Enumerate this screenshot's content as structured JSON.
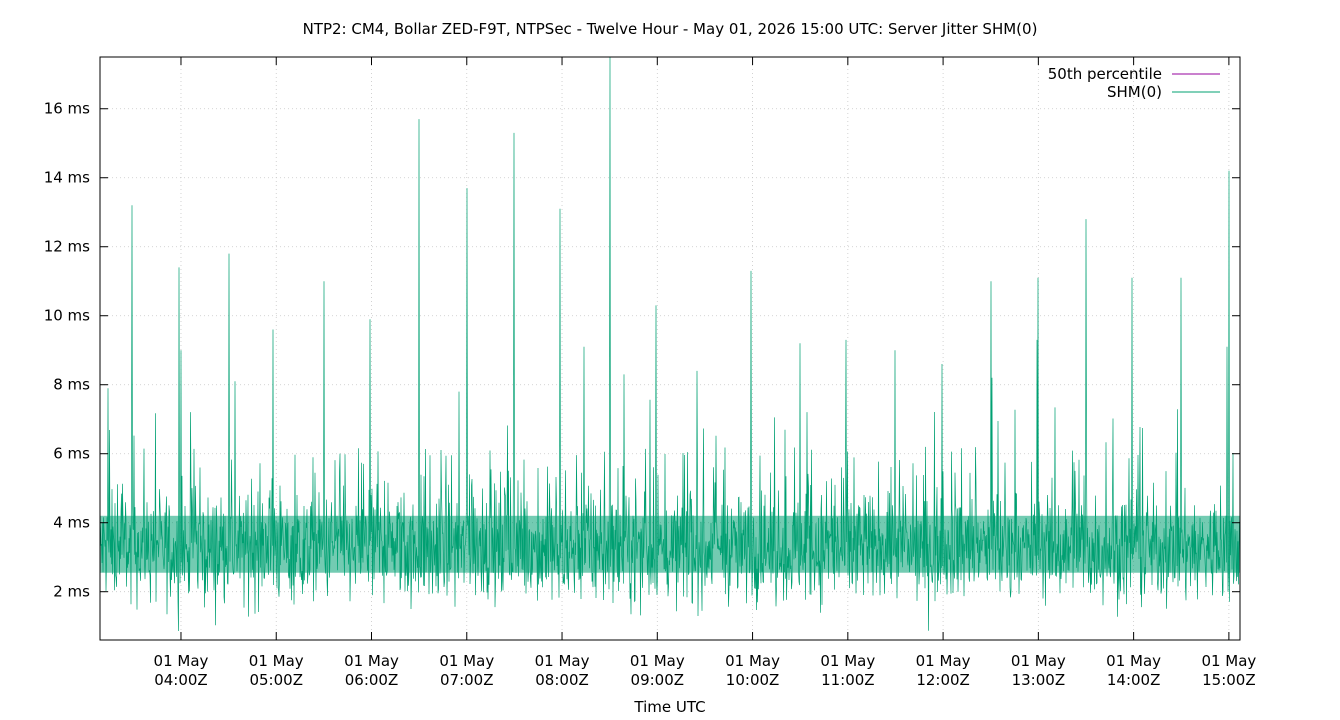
{
  "chart_data": {
    "type": "line",
    "title": "NTP2: CM4, Bollar ZED-F9T, NTPSec - Twelve Hour - May 01, 2026 15:00 UTC: Server Jitter SHM(0)",
    "xlabel": "Time UTC",
    "ylabel": "",
    "x_range": [
      "01 May 03:09Z",
      "01 May 15:07Z"
    ],
    "ylim": [
      0.6,
      17.5
    ],
    "grid": true,
    "legend_position": "top-right",
    "y_ticks": [
      {
        "value": 2,
        "label": "2 ms"
      },
      {
        "value": 4,
        "label": "4 ms"
      },
      {
        "value": 6,
        "label": "6 ms"
      },
      {
        "value": 8,
        "label": "8 ms"
      },
      {
        "value": 10,
        "label": "10 ms"
      },
      {
        "value": 12,
        "label": "12 ms"
      },
      {
        "value": 14,
        "label": "14 ms"
      },
      {
        "value": 16,
        "label": "16 ms"
      }
    ],
    "x_ticks": [
      {
        "hour": 4,
        "line1": "01 May",
        "line2": "04:00Z"
      },
      {
        "hour": 5,
        "line1": "01 May",
        "line2": "05:00Z"
      },
      {
        "hour": 6,
        "line1": "01 May",
        "line2": "06:00Z"
      },
      {
        "hour": 7,
        "line1": "01 May",
        "line2": "07:00Z"
      },
      {
        "hour": 8,
        "line1": "01 May",
        "line2": "08:00Z"
      },
      {
        "hour": 9,
        "line1": "01 May",
        "line2": "09:00Z"
      },
      {
        "hour": 10,
        "line1": "01 May",
        "line2": "10:00Z"
      },
      {
        "hour": 11,
        "line1": "01 May",
        "line2": "11:00Z"
      },
      {
        "hour": 12,
        "line1": "01 May",
        "line2": "12:00Z"
      },
      {
        "hour": 13,
        "line1": "01 May",
        "line2": "13:00Z"
      },
      {
        "hour": 14,
        "line1": "01 May",
        "line2": "14:00Z"
      },
      {
        "hour": 15,
        "line1": "01 May",
        "line2": "15:00Z"
      }
    ],
    "series": [
      {
        "name": "50th percentile",
        "color": "#94009e",
        "value": 3.3
      },
      {
        "name": "SHM(0)",
        "color": "#00a072",
        "baseline_range_ms": [
          2.0,
          4.8
        ],
        "peaks": [
          {
            "t": "03:14Z",
            "ms": 7.9
          },
          {
            "t": "03:29Z",
            "ms": 13.2
          },
          {
            "t": "03:59Z",
            "ms": 11.4
          },
          {
            "t": "04:00Z",
            "ms": 9.0
          },
          {
            "t": "04:30Z",
            "ms": 11.8
          },
          {
            "t": "04:34Z",
            "ms": 8.1
          },
          {
            "t": "04:58Z",
            "ms": 9.6
          },
          {
            "t": "05:30Z",
            "ms": 11.0
          },
          {
            "t": "05:59Z",
            "ms": 9.9
          },
          {
            "t": "06:30Z",
            "ms": 15.7
          },
          {
            "t": "06:55Z",
            "ms": 7.8
          },
          {
            "t": "07:00Z",
            "ms": 13.7
          },
          {
            "t": "07:30Z",
            "ms": 15.3
          },
          {
            "t": "07:59Z",
            "ms": 13.1
          },
          {
            "t": "08:14Z",
            "ms": 9.1
          },
          {
            "t": "08:30Z",
            "ms": 17.5
          },
          {
            "t": "08:39Z",
            "ms": 8.3
          },
          {
            "t": "08:59Z",
            "ms": 10.3
          },
          {
            "t": "09:25Z",
            "ms": 8.4
          },
          {
            "t": "09:59Z",
            "ms": 11.3
          },
          {
            "t": "10:30Z",
            "ms": 9.2
          },
          {
            "t": "10:59Z",
            "ms": 9.3
          },
          {
            "t": "11:30Z",
            "ms": 9.0
          },
          {
            "t": "11:59Z",
            "ms": 8.6
          },
          {
            "t": "12:30Z",
            "ms": 11.0
          },
          {
            "t": "12:31Z",
            "ms": 8.2
          },
          {
            "t": "12:59Z",
            "ms": 9.3
          },
          {
            "t": "13:00Z",
            "ms": 11.1
          },
          {
            "t": "13:30Z",
            "ms": 12.8
          },
          {
            "t": "13:59Z",
            "ms": 11.1
          },
          {
            "t": "14:30Z",
            "ms": 11.1
          },
          {
            "t": "14:59Z",
            "ms": 9.1
          },
          {
            "t": "15:00Z",
            "ms": 14.2
          }
        ]
      }
    ]
  }
}
